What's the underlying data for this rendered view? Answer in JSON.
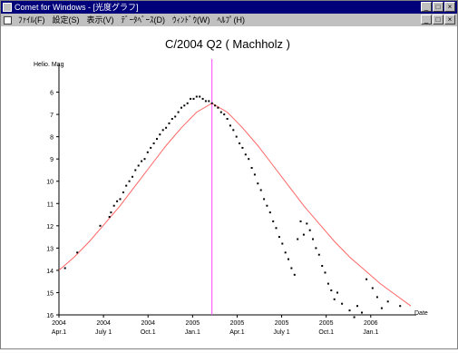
{
  "window": {
    "title": "Comet for Windows - [光度グラフ]",
    "buttons": [
      "_",
      "□",
      "×"
    ]
  },
  "menubar": {
    "items": [
      "ﾌｧｲﾙ(F)",
      "設定(S)",
      "表示(V)",
      "ﾃﾞｰﾀﾍﾞｰｽ(D)",
      "ｳｨﾝﾄﾞｳ(W)",
      "ﾍﾙﾌﾟ(H)"
    ],
    "doc_buttons": [
      "_",
      "□",
      "×"
    ]
  },
  "chart_data": {
    "type": "scatter",
    "title": "C/2004 Q2 ( Machholz )",
    "ylabel": "Helio. Mag",
    "xlabel": "Date",
    "ylim": [
      16,
      5
    ],
    "yticks": [
      6,
      7,
      8,
      9,
      10,
      11,
      12,
      13,
      14,
      15,
      16
    ],
    "xticks": [
      {
        "top": "2004",
        "bottom": "Apr.1"
      },
      {
        "top": "2004",
        "bottom": "July 1"
      },
      {
        "top": "2004",
        "bottom": "Oct.1"
      },
      {
        "top": "2005",
        "bottom": "Jan.1"
      },
      {
        "top": "2005",
        "bottom": "Apr.1"
      },
      {
        "top": "2005",
        "bottom": "July 1"
      },
      {
        "top": "2005",
        "bottom": "Oct.1"
      },
      {
        "top": "2006",
        "bottom": "Jan.1"
      }
    ],
    "xlim_months": [
      0,
      23
    ],
    "perihelion_month": 10,
    "curve_color": "#ff6666",
    "perihelion_color": "#ff44ff",
    "points_color": "#000000",
    "series": [
      {
        "name": "observations",
        "x": [
          0.4,
          1.2,
          2.7,
          3.3,
          3.4,
          3.6,
          3.8,
          4.0,
          4.2,
          4.4,
          4.6,
          4.8,
          5.0,
          5.2,
          5.4,
          5.6,
          5.8,
          6.0,
          6.2,
          6.4,
          6.6,
          6.8,
          7.0,
          7.2,
          7.4,
          7.6,
          7.8,
          8.0,
          8.2,
          8.4,
          8.6,
          8.8,
          9.0,
          9.2,
          9.4,
          9.6,
          9.8,
          10.0,
          10.2,
          10.4,
          10.6,
          10.8,
          11.0,
          11.2,
          11.4,
          11.6,
          11.8,
          12.0,
          12.2,
          12.4,
          12.6,
          12.8,
          13.0,
          13.2,
          13.4,
          13.6,
          13.8,
          14.0,
          14.2,
          14.4,
          14.6,
          14.8,
          15.0,
          15.2,
          15.4,
          15.6,
          15.8,
          16.0,
          16.2,
          16.4,
          16.6,
          16.8,
          17.0,
          17.2,
          17.4,
          17.6,
          17.8,
          18.0,
          18.2,
          18.5,
          19.0,
          19.3,
          19.5,
          19.8,
          20.1,
          20.5,
          20.8,
          21.1,
          21.5,
          22.3
        ],
        "y": [
          13.9,
          13.2,
          12.0,
          11.6,
          11.4,
          11.1,
          10.9,
          10.8,
          10.5,
          10.2,
          10.0,
          9.8,
          9.5,
          9.3,
          9.1,
          9.0,
          8.7,
          8.5,
          8.3,
          8.1,
          7.9,
          7.7,
          7.6,
          7.4,
          7.2,
          7.1,
          6.9,
          6.7,
          6.6,
          6.5,
          6.3,
          6.3,
          6.2,
          6.2,
          6.3,
          6.4,
          6.4,
          6.5,
          6.6,
          6.7,
          6.9,
          7.0,
          7.2,
          7.5,
          7.7,
          8.0,
          8.3,
          8.5,
          8.8,
          9.0,
          9.4,
          9.7,
          10.1,
          10.4,
          10.8,
          11.1,
          11.4,
          11.8,
          12.1,
          12.5,
          12.8,
          13.2,
          13.5,
          13.9,
          14.2,
          12.6,
          11.8,
          12.4,
          11.9,
          12.2,
          12.6,
          13.0,
          13.3,
          13.8,
          14.1,
          14.6,
          14.9,
          15.3,
          15.0,
          15.5,
          15.8,
          16.1,
          15.6,
          15.9,
          14.4,
          14.8,
          15.2,
          15.7,
          15.4,
          15.6
        ]
      }
    ],
    "curve": {
      "x": [
        0,
        1,
        2,
        3,
        4,
        5,
        6,
        7,
        8,
        9,
        10,
        11,
        12,
        13,
        14,
        15,
        16,
        17,
        18,
        19,
        20,
        21,
        22,
        23
      ],
      "y": [
        14.0,
        13.4,
        12.7,
        11.9,
        11.1,
        10.2,
        9.3,
        8.4,
        7.6,
        6.9,
        6.5,
        6.9,
        7.6,
        8.4,
        9.3,
        10.2,
        11.1,
        11.9,
        12.7,
        13.4,
        14.0,
        14.6,
        15.1,
        15.6
      ]
    }
  }
}
